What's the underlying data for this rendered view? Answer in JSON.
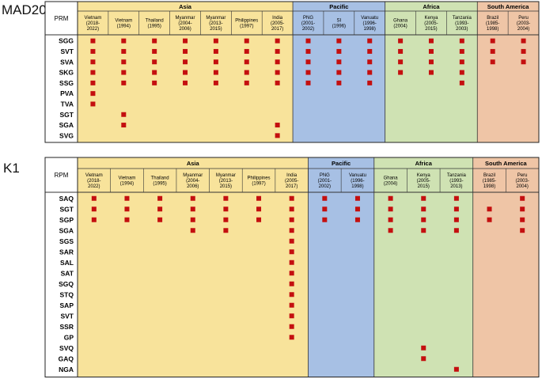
{
  "colors": {
    "asia": "#f8e39b",
    "pacific": "#a7c0e4",
    "africa": "#cfe2b3",
    "south_america": "#efc5a6",
    "marker": "#c40f0f"
  },
  "tables": [
    {
      "title": "MAD20",
      "corner_label": "PRM",
      "regions": [
        {
          "name": "Asia",
          "color_key": "asia",
          "span": 7
        },
        {
          "name": "Pacific",
          "color_key": "pacific",
          "span": 3
        },
        {
          "name": "Africa",
          "color_key": "africa",
          "span": 3
        },
        {
          "name": "South America",
          "color_key": "south_america",
          "span": 2
        }
      ],
      "columns": [
        {
          "name": "Vietnam",
          "years": "(2018-2022)"
        },
        {
          "name": "Vietnam",
          "years": "(1994)"
        },
        {
          "name": "Thailand",
          "years": "(1995)"
        },
        {
          "name": "Myanmar",
          "years": "(2004-2006)"
        },
        {
          "name": "Myanmar",
          "years": "(2013-2015)"
        },
        {
          "name": "Philippines",
          "years": "(1997)"
        },
        {
          "name": "India",
          "years": "(2005-2017)"
        },
        {
          "name": "PNG",
          "years": "(2001-2002)"
        },
        {
          "name": "SI",
          "years": "(1996)"
        },
        {
          "name": "Vanuatu",
          "years": "(1996-1998)"
        },
        {
          "name": "Ghana",
          "years": "(2004)"
        },
        {
          "name": "Kenya",
          "years": "(2005-2015)"
        },
        {
          "name": "Tanzania",
          "years": "(1993-2003)"
        },
        {
          "name": "Brazil",
          "years": "(1985-1998)"
        },
        {
          "name": "Peru",
          "years": "(2003-2004)"
        }
      ],
      "rows": [
        {
          "label": "SGG",
          "present": [
            1,
            1,
            1,
            1,
            1,
            1,
            1,
            1,
            1,
            1,
            1,
            1,
            1,
            1,
            1
          ]
        },
        {
          "label": "SVT",
          "present": [
            1,
            1,
            1,
            1,
            1,
            1,
            1,
            1,
            1,
            1,
            1,
            1,
            1,
            1,
            1
          ]
        },
        {
          "label": "SVA",
          "present": [
            1,
            1,
            1,
            1,
            1,
            1,
            1,
            1,
            1,
            1,
            1,
            1,
            1,
            1,
            1
          ]
        },
        {
          "label": "SKG",
          "present": [
            1,
            1,
            1,
            1,
            1,
            1,
            1,
            1,
            1,
            1,
            1,
            1,
            1,
            0,
            0
          ]
        },
        {
          "label": "SSG",
          "present": [
            1,
            1,
            1,
            1,
            1,
            1,
            1,
            1,
            1,
            1,
            0,
            0,
            1,
            0,
            0
          ]
        },
        {
          "label": "PVA",
          "present": [
            1,
            0,
            0,
            0,
            0,
            0,
            0,
            0,
            0,
            0,
            0,
            0,
            0,
            0,
            0
          ]
        },
        {
          "label": "TVA",
          "present": [
            1,
            0,
            0,
            0,
            0,
            0,
            0,
            0,
            0,
            0,
            0,
            0,
            0,
            0,
            0
          ]
        },
        {
          "label": "SGT",
          "present": [
            0,
            1,
            0,
            0,
            0,
            0,
            0,
            0,
            0,
            0,
            0,
            0,
            0,
            0,
            0
          ]
        },
        {
          "label": "SGA",
          "present": [
            0,
            1,
            0,
            0,
            0,
            0,
            1,
            0,
            0,
            0,
            0,
            0,
            0,
            0,
            0
          ]
        },
        {
          "label": "SVG",
          "present": [
            0,
            0,
            0,
            0,
            0,
            0,
            1,
            0,
            0,
            0,
            0,
            0,
            0,
            0,
            0
          ]
        }
      ]
    },
    {
      "title": "K1",
      "corner_label": "RPM",
      "regions": [
        {
          "name": "Asia",
          "color_key": "asia",
          "span": 7
        },
        {
          "name": "Pacific",
          "color_key": "pacific",
          "span": 2
        },
        {
          "name": "Africa",
          "color_key": "africa",
          "span": 3
        },
        {
          "name": "South America",
          "color_key": "south_america",
          "span": 2
        }
      ],
      "columns": [
        {
          "name": "Vietnam",
          "years": "(2018-2022)"
        },
        {
          "name": "Vietnam",
          "years": "(1994)"
        },
        {
          "name": "Thailand",
          "years": "(1995)"
        },
        {
          "name": "Myanmar",
          "years": "(2004-2006)"
        },
        {
          "name": "Myanmar",
          "years": "(2013-2015)"
        },
        {
          "name": "Philippines",
          "years": "(1997)"
        },
        {
          "name": "India",
          "years": "(2005-2017)"
        },
        {
          "name": "PNG",
          "years": "(2001-2002)"
        },
        {
          "name": "Vanuatu",
          "years": "(1996-1998)"
        },
        {
          "name": "Ghana",
          "years": "(2004)"
        },
        {
          "name": "Kenya",
          "years": "(2005-2015)"
        },
        {
          "name": "Tanzania",
          "years": "(1993-2013)"
        },
        {
          "name": "Brazil",
          "years": "(1985-1998)"
        },
        {
          "name": "Peru",
          "years": "(2003-2004)"
        }
      ],
      "rows": [
        {
          "label": "SAQ",
          "present": [
            1,
            1,
            1,
            1,
            1,
            1,
            1,
            1,
            1,
            1,
            1,
            1,
            0,
            1
          ]
        },
        {
          "label": "SGT",
          "present": [
            1,
            1,
            1,
            1,
            1,
            1,
            1,
            1,
            1,
            1,
            1,
            1,
            1,
            1
          ]
        },
        {
          "label": "SGP",
          "present": [
            1,
            1,
            1,
            1,
            1,
            1,
            1,
            1,
            1,
            1,
            1,
            1,
            1,
            1
          ]
        },
        {
          "label": "SGA",
          "present": [
            0,
            0,
            0,
            1,
            1,
            0,
            1,
            0,
            0,
            1,
            1,
            1,
            0,
            1
          ]
        },
        {
          "label": "SGS",
          "present": [
            0,
            0,
            0,
            0,
            0,
            0,
            1,
            0,
            0,
            0,
            0,
            0,
            0,
            0
          ]
        },
        {
          "label": "SAR",
          "present": [
            0,
            0,
            0,
            0,
            0,
            0,
            1,
            0,
            0,
            0,
            0,
            0,
            0,
            0
          ]
        },
        {
          "label": "SAL",
          "present": [
            0,
            0,
            0,
            0,
            0,
            0,
            1,
            0,
            0,
            0,
            0,
            0,
            0,
            0
          ]
        },
        {
          "label": "SAT",
          "present": [
            0,
            0,
            0,
            0,
            0,
            0,
            1,
            0,
            0,
            0,
            0,
            0,
            0,
            0
          ]
        },
        {
          "label": "SGQ",
          "present": [
            0,
            0,
            0,
            0,
            0,
            0,
            1,
            0,
            0,
            0,
            0,
            0,
            0,
            0
          ]
        },
        {
          "label": "STQ",
          "present": [
            0,
            0,
            0,
            0,
            0,
            0,
            1,
            0,
            0,
            0,
            0,
            0,
            0,
            0
          ]
        },
        {
          "label": "SAP",
          "present": [
            0,
            0,
            0,
            0,
            0,
            0,
            1,
            0,
            0,
            0,
            0,
            0,
            0,
            0
          ]
        },
        {
          "label": "SVT",
          "present": [
            0,
            0,
            0,
            0,
            0,
            0,
            1,
            0,
            0,
            0,
            0,
            0,
            0,
            0
          ]
        },
        {
          "label": "SSR",
          "present": [
            0,
            0,
            0,
            0,
            0,
            0,
            1,
            0,
            0,
            0,
            0,
            0,
            0,
            0
          ]
        },
        {
          "label": "GP",
          "present": [
            0,
            0,
            0,
            0,
            0,
            0,
            1,
            0,
            0,
            0,
            0,
            0,
            0,
            0
          ]
        },
        {
          "label": "SVQ",
          "present": [
            0,
            0,
            0,
            0,
            0,
            0,
            0,
            0,
            0,
            0,
            1,
            0,
            0,
            0
          ]
        },
        {
          "label": "GAQ",
          "present": [
            0,
            0,
            0,
            0,
            0,
            0,
            0,
            0,
            0,
            0,
            1,
            0,
            0,
            0
          ]
        },
        {
          "label": "NGA",
          "present": [
            0,
            0,
            0,
            0,
            0,
            0,
            0,
            0,
            0,
            0,
            0,
            1,
            0,
            0
          ]
        }
      ]
    }
  ]
}
